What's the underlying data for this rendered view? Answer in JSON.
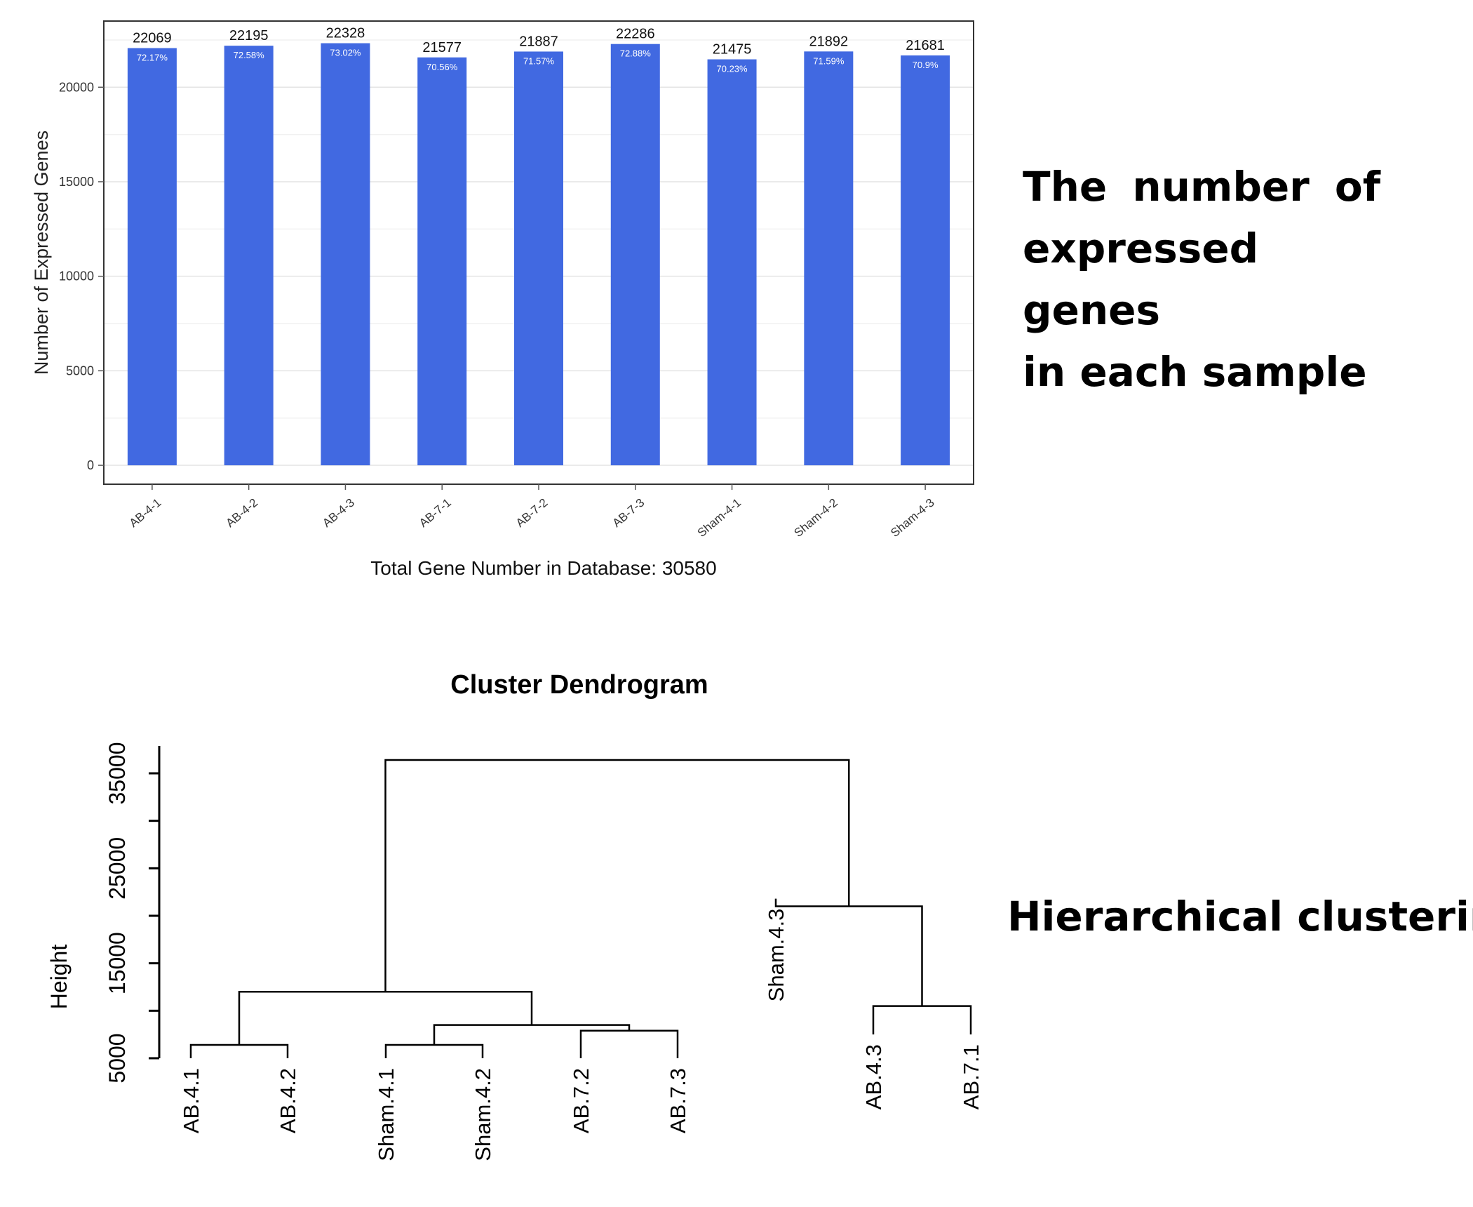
{
  "bar_chart": {
    "ytick_labels": [
      "0",
      "5000",
      "10000",
      "15000",
      "20000"
    ],
    "footer": "Total Gene Number in Database: 30580",
    "bar_color": "#4169e1"
  },
  "dendrogram": {
    "title": "Cluster Dendrogram",
    "ylabel": "Height",
    "ytick_labels": [
      "5000",
      "15000",
      "25000",
      "35000"
    ]
  },
  "captions": {
    "top_line1_words": [
      "The",
      "number",
      "of"
    ],
    "top_line2": "expressed genes",
    "top_line3": "in each sample",
    "bottom": "Hierarchical clustering"
  },
  "chart_data": [
    {
      "type": "bar",
      "title": "",
      "xlabel": "",
      "ylabel": "Number of Expressed Genes",
      "ylim": [
        -1000,
        23500
      ],
      "grid": true,
      "categories": [
        "AB-4-1",
        "AB-4-2",
        "AB-4-3",
        "AB-7-1",
        "AB-7-2",
        "AB-7-3",
        "Sham-4-1",
        "Sham-4-2",
        "Sham-4-3"
      ],
      "values": [
        22069,
        22195,
        22328,
        21577,
        21887,
        22286,
        21475,
        21892,
        21681
      ],
      "percent_labels": [
        "72.17%",
        "72.58%",
        "73.02%",
        "70.56%",
        "71.57%",
        "72.88%",
        "70.23%",
        "71.59%",
        "70.9%"
      ]
    },
    {
      "type": "dendrogram",
      "title": "Cluster Dendrogram",
      "ylabel": "Height",
      "yticks": [
        5000,
        10000,
        15000,
        20000,
        25000,
        30000,
        35000
      ],
      "leaves": [
        {
          "label": "AB.4.1",
          "height": 5000
        },
        {
          "label": "AB.4.2",
          "height": 5000
        },
        {
          "label": "Sham.4.1",
          "height": 5000
        },
        {
          "label": "Sham.4.2",
          "height": 5000
        },
        {
          "label": "AB.7.2",
          "height": 5000
        },
        {
          "label": "AB.7.3",
          "height": 5000
        },
        {
          "label": "Sham.4.3",
          "height": 21800
        },
        {
          "label": "AB.4.3",
          "height": 7500
        },
        {
          "label": "AB.7.1",
          "height": 7500
        }
      ],
      "merges": [
        {
          "children": [
            "AB.4.1",
            "AB.4.2"
          ],
          "height": 6400
        },
        {
          "children": [
            "Sham.4.1",
            "Sham.4.2"
          ],
          "height": 6400
        },
        {
          "children": [
            "AB.7.2",
            "AB.7.3"
          ],
          "height": 7900
        },
        {
          "children": [
            "Sham.4.1+Sham.4.2",
            "AB.7.2+AB.7.3"
          ],
          "height": 8500
        },
        {
          "children": [
            "AB.4.1+AB.4.2",
            "Sham.4.1+Sham.4.2+AB.7.2+AB.7.3"
          ],
          "height": 12000
        },
        {
          "children": [
            "AB.4.3",
            "AB.7.1"
          ],
          "height": 10500
        },
        {
          "children": [
            "Sham.4.3",
            "AB.4.3+AB.7.1"
          ],
          "height": 21000
        },
        {
          "children": [
            "left-cluster",
            "right-cluster"
          ],
          "height": 36400
        }
      ]
    }
  ]
}
